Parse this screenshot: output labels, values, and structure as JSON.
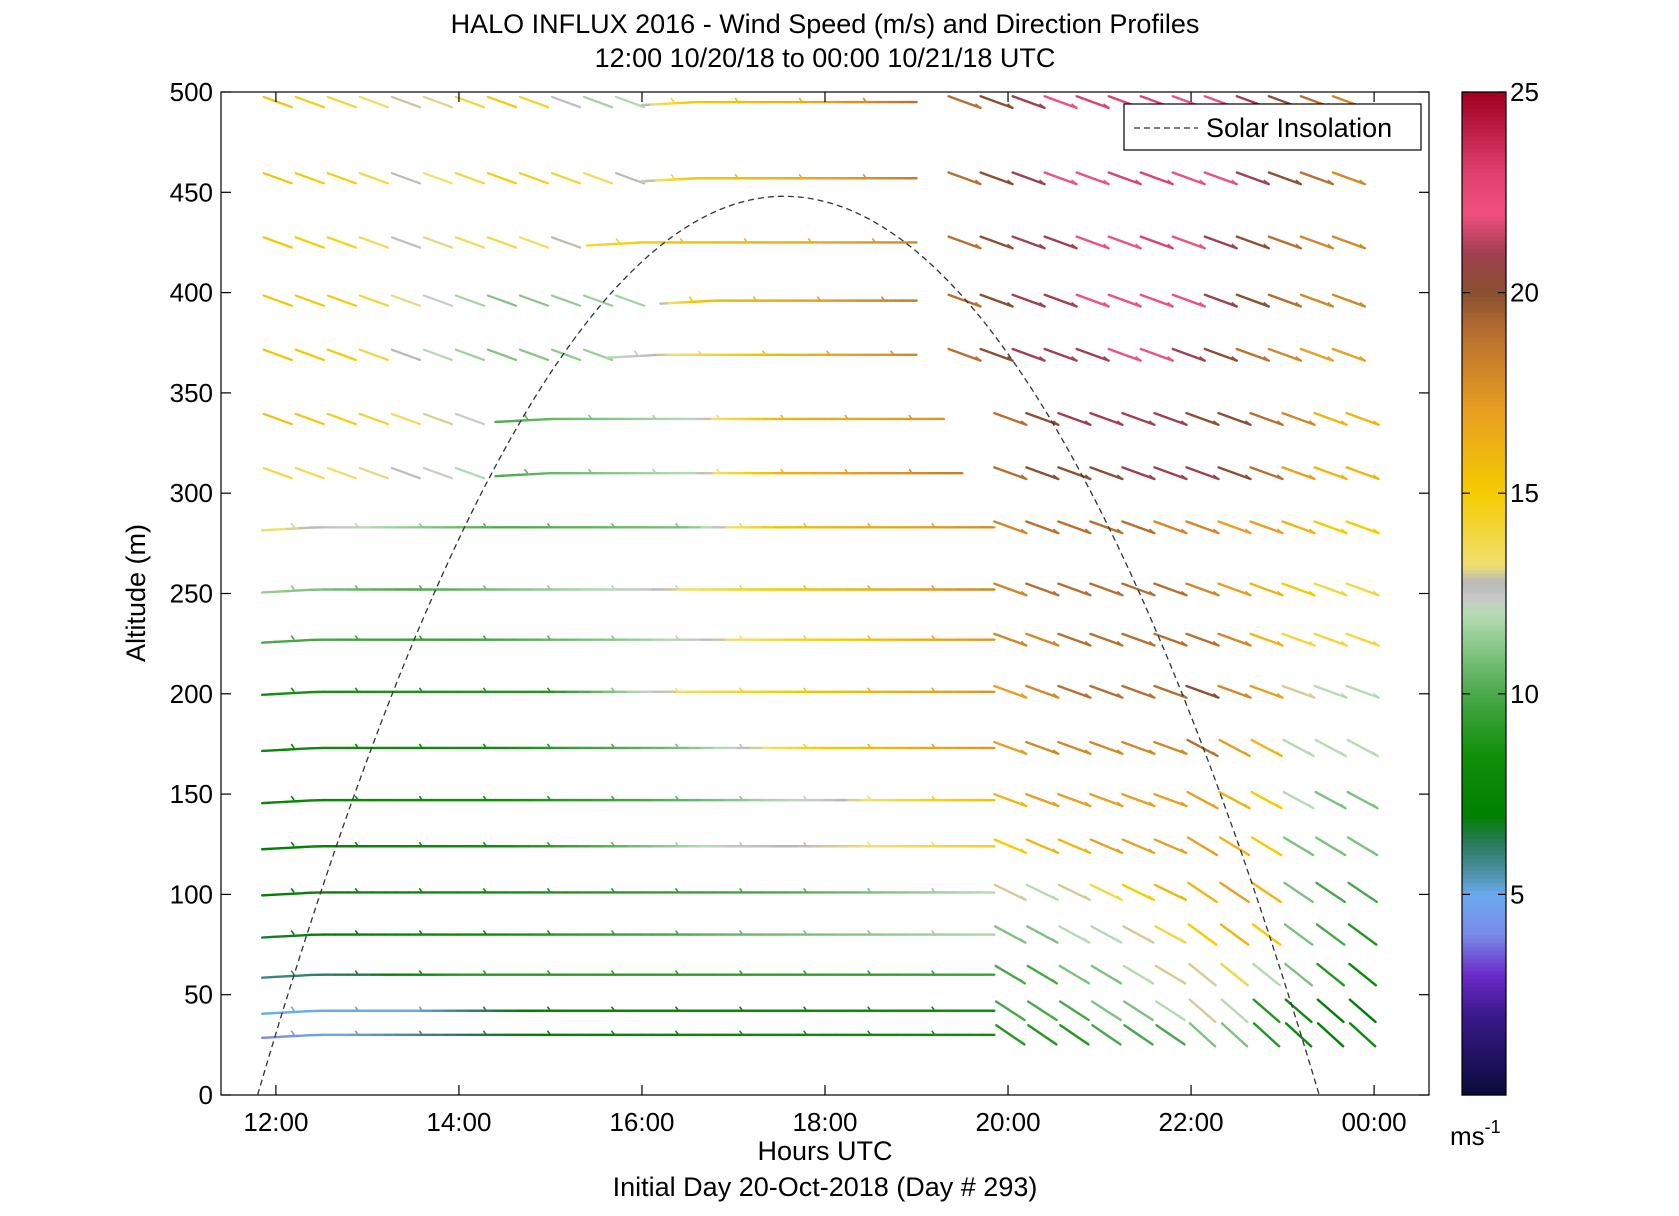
{
  "chart_data": {
    "type": "wind-barb-profile",
    "title": "HALO INFLUX 2016 - Wind Speed (m/s) and Direction Profiles",
    "subtitle": "12:00 10/20/18 to 00:00 10/21/18  UTC",
    "xlabel": "Hours UTC",
    "ylabel": "Altitude (m)",
    "footer": "Initial Day 20-Oct-2018 (Day # 293)",
    "xlim": [
      11.4,
      24.6
    ],
    "ylim": [
      0,
      500
    ],
    "xticks": [
      12,
      14,
      16,
      18,
      20,
      22,
      24
    ],
    "xtick_labels": [
      "12:00",
      "14:00",
      "16:00",
      "18:00",
      "20:00",
      "22:00",
      "00:00"
    ],
    "yticks": [
      0,
      50,
      100,
      150,
      200,
      250,
      300,
      350,
      400,
      450,
      500
    ],
    "ytick_labels": [
      "0",
      "50",
      "100",
      "150",
      "200",
      "250",
      "300",
      "350",
      "400",
      "450",
      "500"
    ],
    "colorbar": {
      "range": [
        0,
        25
      ],
      "ticks": [
        5,
        10,
        15,
        20,
        25
      ],
      "tick_labels": [
        "5",
        "10",
        "15",
        "20",
        "25"
      ],
      "unit_label": "ms",
      "unit_exponent": "-1",
      "stops": [
        {
          "v": 0,
          "c": "#0a0a3a"
        },
        {
          "v": 2,
          "c": "#3a1a8a"
        },
        {
          "v": 3,
          "c": "#6a2ac8"
        },
        {
          "v": 4,
          "c": "#7a8ae8"
        },
        {
          "v": 5,
          "c": "#6aaaf0"
        },
        {
          "v": 5.6,
          "c": "#4a90a0"
        },
        {
          "v": 6.3,
          "c": "#2a7a5a"
        },
        {
          "v": 7,
          "c": "#008000"
        },
        {
          "v": 8.5,
          "c": "#10900a"
        },
        {
          "v": 10,
          "c": "#4aa84a"
        },
        {
          "v": 12,
          "c": "#b4dcb4"
        },
        {
          "v": 12.4,
          "c": "#c8c8c8"
        },
        {
          "v": 12.8,
          "c": "#b8b8b8"
        },
        {
          "v": 13.2,
          "c": "#f0e070"
        },
        {
          "v": 15,
          "c": "#f5cc00"
        },
        {
          "v": 17,
          "c": "#e8a020"
        },
        {
          "v": 19,
          "c": "#b87030"
        },
        {
          "v": 20,
          "c": "#8a5030"
        },
        {
          "v": 21,
          "c": "#a04050"
        },
        {
          "v": 22,
          "c": "#f05080"
        },
        {
          "v": 23,
          "c": "#e04070"
        },
        {
          "v": 25,
          "c": "#a00020"
        }
      ]
    },
    "legend": {
      "position": "top-right",
      "entries": [
        "Solar Insolation"
      ]
    },
    "solar_insolation": {
      "start_hour": 11.8,
      "end_hour": 23.4,
      "peak_hour": 17.55,
      "peak_altitude": 448
    },
    "wind_rows": [
      {
        "alt": 30,
        "kind": "line",
        "x0": 11.85,
        "x1": 19.85,
        "segments": [
          [
            11.85,
            4.0
          ],
          [
            12.3,
            4.5
          ],
          [
            12.7,
            5.0
          ],
          [
            15.3,
            7.5
          ],
          [
            19.8,
            8.5
          ]
        ],
        "start_dir": 275
      },
      {
        "alt": 42,
        "kind": "line",
        "x0": 11.85,
        "x1": 19.85,
        "segments": [
          [
            11.85,
            5.0
          ],
          [
            13.5,
            5.0
          ],
          [
            15.0,
            7.5
          ],
          [
            19.8,
            8.5
          ]
        ],
        "start_dir": 278
      },
      {
        "alt": 60,
        "kind": "line",
        "x0": 11.85,
        "x1": 19.85,
        "segments": [
          [
            11.85,
            5.8
          ],
          [
            13.0,
            6.5
          ],
          [
            14.0,
            9.0
          ],
          [
            19.8,
            9.5
          ]
        ],
        "start_dir": 280
      },
      {
        "alt": 80,
        "kind": "line",
        "x0": 11.85,
        "x1": 19.85,
        "segments": [
          [
            11.85,
            6.5
          ],
          [
            14.0,
            8.0
          ],
          [
            17.0,
            10.5
          ],
          [
            19.8,
            11.8
          ]
        ],
        "start_dir": 282
      },
      {
        "alt": 101,
        "kind": "line",
        "x0": 11.85,
        "x1": 19.85,
        "segments": [
          [
            11.85,
            7.0
          ],
          [
            14.5,
            8.5
          ],
          [
            17.5,
            10.0
          ],
          [
            19.8,
            12.0
          ]
        ],
        "start_dir": 283
      },
      {
        "alt": 124,
        "kind": "line",
        "x0": 11.85,
        "x1": 19.85,
        "segments": [
          [
            11.85,
            7.0
          ],
          [
            14.5,
            8.5
          ],
          [
            17.0,
            12.5
          ],
          [
            18.5,
            13.2
          ],
          [
            19.8,
            14.5
          ]
        ],
        "start_dir": 284
      },
      {
        "alt": 147,
        "kind": "line",
        "x0": 11.85,
        "x1": 19.85,
        "segments": [
          [
            11.85,
            7.5
          ],
          [
            14.5,
            8.5
          ],
          [
            16.5,
            10.5
          ],
          [
            18.0,
            12.5
          ],
          [
            19.8,
            15.5
          ]
        ],
        "start_dir": 285
      },
      {
        "alt": 173,
        "kind": "line",
        "x0": 11.85,
        "x1": 19.85,
        "segments": [
          [
            11.85,
            7.8
          ],
          [
            14.5,
            8.5
          ],
          [
            16.5,
            11.0
          ],
          [
            18.0,
            15.0
          ],
          [
            19.8,
            17.5
          ]
        ],
        "start_dir": 285
      },
      {
        "alt": 201,
        "kind": "line",
        "x0": 11.85,
        "x1": 19.85,
        "segments": [
          [
            11.85,
            8.5
          ],
          [
            15.0,
            9.0
          ],
          [
            16.5,
            13.5
          ],
          [
            18.0,
            15.5
          ],
          [
            19.8,
            17.5
          ]
        ],
        "start_dir": 285
      },
      {
        "alt": 227,
        "kind": "line",
        "x0": 11.85,
        "x1": 19.85,
        "segments": [
          [
            11.85,
            10.0
          ],
          [
            14.0,
            9.5
          ],
          [
            16.0,
            11.5
          ],
          [
            17.5,
            14.0
          ],
          [
            19.8,
            17.5
          ]
        ],
        "start_dir": 286
      },
      {
        "alt": 252,
        "kind": "line",
        "x0": 11.85,
        "x1": 19.85,
        "segments": [
          [
            11.85,
            11.5
          ],
          [
            13.5,
            10.0
          ],
          [
            16.0,
            12.4
          ],
          [
            17.5,
            15.0
          ],
          [
            19.8,
            18.0
          ]
        ],
        "start_dir": 286
      },
      {
        "alt": 283,
        "kind": "line",
        "x0": 11.85,
        "x1": 19.85,
        "segments": [
          [
            11.85,
            13.5
          ],
          [
            13.0,
            12.0
          ],
          [
            14.5,
            10.0
          ],
          [
            16.5,
            11.0
          ],
          [
            17.5,
            15.5
          ],
          [
            19.8,
            17.8
          ]
        ],
        "start_dir": 286
      },
      {
        "alt": 310,
        "kind": "barbs",
        "x0": 11.85,
        "x1": 14.4,
        "segments": [
          [
            11.85,
            14.2
          ],
          [
            13.0,
            13.2
          ],
          [
            14.4,
            11.5
          ]
        ],
        "start_dir": 292
      },
      {
        "alt": 310,
        "kind": "line",
        "x0": 14.4,
        "x1": 19.5,
        "segments": [
          [
            14.4,
            10.0
          ],
          [
            16.5,
            12.0
          ],
          [
            17.5,
            16.0
          ],
          [
            19.5,
            18.5
          ]
        ],
        "start_dir": 286
      },
      {
        "alt": 337,
        "kind": "barbs",
        "x0": 11.85,
        "x1": 14.4,
        "segments": [
          [
            11.85,
            15.8
          ],
          [
            13.0,
            14.5
          ],
          [
            14.4,
            11.8
          ]
        ],
        "start_dir": 292
      },
      {
        "alt": 337,
        "kind": "line",
        "x0": 14.4,
        "x1": 19.3,
        "segments": [
          [
            14.4,
            10.0
          ],
          [
            16.5,
            12.0
          ],
          [
            17.5,
            16.0
          ],
          [
            19.3,
            17.5
          ]
        ],
        "start_dir": 286
      },
      {
        "alt": 369,
        "kind": "barbs",
        "x0": 11.85,
        "x1": 15.6,
        "segments": [
          [
            11.85,
            15.5
          ],
          [
            12.8,
            15.0
          ],
          [
            13.5,
            12.5
          ],
          [
            14.5,
            11.0
          ],
          [
            15.6,
            11.5
          ]
        ],
        "start_dir": 293
      },
      {
        "alt": 369,
        "kind": "line",
        "x0": 15.6,
        "x1": 19.0,
        "segments": [
          [
            15.6,
            11.8
          ],
          [
            16.5,
            13.5
          ],
          [
            17.5,
            15.8
          ],
          [
            19.0,
            18.0
          ]
        ],
        "start_dir": 287
      },
      {
        "alt": 396,
        "kind": "barbs",
        "x0": 11.85,
        "x1": 16.2,
        "segments": [
          [
            11.85,
            15.5
          ],
          [
            12.8,
            15.0
          ],
          [
            13.6,
            12.6
          ],
          [
            14.5,
            11.0
          ],
          [
            16.2,
            11.8
          ]
        ],
        "start_dir": 293
      },
      {
        "alt": 396,
        "kind": "line",
        "x0": 16.2,
        "x1": 19.0,
        "segments": [
          [
            16.2,
            12.4
          ],
          [
            16.6,
            15.5
          ],
          [
            17.8,
            16.8
          ],
          [
            19.0,
            18.5
          ]
        ],
        "start_dir": 287
      },
      {
        "alt": 425,
        "kind": "barbs",
        "x0": 11.85,
        "x1": 15.4,
        "segments": [
          [
            11.85,
            15.5
          ],
          [
            12.8,
            14.5
          ],
          [
            13.4,
            12.6
          ],
          [
            14.4,
            14.0
          ],
          [
            15.4,
            12.5
          ]
        ],
        "start_dir": 294
      },
      {
        "alt": 425,
        "kind": "line",
        "x0": 15.4,
        "x1": 19.0,
        "segments": [
          [
            15.4,
            14.0
          ],
          [
            16.5,
            15.5
          ],
          [
            17.8,
            16.5
          ],
          [
            19.0,
            18.0
          ]
        ],
        "start_dir": 288
      },
      {
        "alt": 457,
        "kind": "barbs",
        "x0": 11.85,
        "x1": 16.0,
        "segments": [
          [
            11.85,
            15.5
          ],
          [
            12.8,
            14.8
          ],
          [
            13.5,
            12.6
          ],
          [
            14.5,
            15.0
          ],
          [
            15.4,
            14.0
          ],
          [
            16.0,
            12.5
          ]
        ],
        "start_dir": 294
      },
      {
        "alt": 457,
        "kind": "line",
        "x0": 16.0,
        "x1": 19.0,
        "segments": [
          [
            16.0,
            12.2
          ],
          [
            16.5,
            15.0
          ],
          [
            17.8,
            16.5
          ],
          [
            19.0,
            18.5
          ]
        ],
        "start_dir": 288
      },
      {
        "alt": 495,
        "kind": "barbs",
        "x0": 11.85,
        "x1": 16.0,
        "segments": [
          [
            11.85,
            15.8
          ],
          [
            12.8,
            14.0
          ],
          [
            13.6,
            12.6
          ],
          [
            14.6,
            15.5
          ],
          [
            15.4,
            11.5
          ],
          [
            16.0,
            12.0
          ]
        ],
        "start_dir": 294
      },
      {
        "alt": 495,
        "kind": "line",
        "x0": 16.0,
        "x1": 19.0,
        "segments": [
          [
            16.0,
            12.5
          ],
          [
            16.5,
            15.0
          ],
          [
            17.8,
            16.5
          ],
          [
            19.0,
            19.0
          ]
        ],
        "start_dir": 288
      }
    ],
    "barb_fields": [
      {
        "x0": 19.85,
        "x1": 24.0,
        "alt_rows": [
          30,
          42,
          60,
          80,
          101,
          124,
          147,
          173,
          201,
          227,
          252,
          283,
          310,
          337
        ],
        "step": 0.35
      },
      {
        "x0": 19.35,
        "x1": 24.0,
        "alt_rows": [
          369,
          396,
          425,
          457,
          495
        ],
        "step": 0.35
      }
    ],
    "barb_speed_profile": {
      "30": [
        9,
        9,
        9,
        10,
        10,
        10,
        11,
        11,
        9,
        8,
        7,
        8,
        9
      ],
      "42": [
        10,
        10,
        10,
        11,
        11,
        12,
        13,
        12,
        9,
        8,
        7,
        7,
        8
      ],
      "60": [
        10,
        10,
        11,
        11,
        12,
        13,
        13,
        14,
        12,
        11,
        9,
        8,
        9
      ],
      "80": [
        11,
        11,
        12,
        12,
        13,
        14,
        15,
        16,
        15,
        11,
        10,
        9,
        9
      ],
      "101": [
        13,
        12,
        13,
        14,
        15,
        16,
        16,
        17,
        16,
        11,
        10,
        10,
        10
      ],
      "124": [
        15,
        16,
        16,
        17,
        17,
        17,
        17,
        16,
        15,
        11,
        11,
        11,
        12
      ],
      "147": [
        16,
        17,
        17,
        17,
        17,
        17,
        17,
        16,
        15,
        12,
        11,
        11,
        13
      ],
      "173": [
        17,
        18,
        18,
        18,
        18,
        18,
        19,
        17,
        16,
        12,
        12,
        12,
        14
      ],
      "201": [
        17,
        18,
        19,
        19,
        19,
        19,
        20,
        18,
        17,
        13,
        12,
        12,
        15
      ],
      "227": [
        18,
        18,
        19,
        19,
        19,
        19,
        19,
        18,
        16,
        14,
        14,
        14,
        15
      ],
      "252": [
        18,
        19,
        19,
        19,
        19,
        19,
        18,
        17,
        16,
        15,
        14,
        14,
        15
      ],
      "283": [
        18,
        19,
        19,
        19,
        19,
        18,
        18,
        17,
        17,
        16,
        15,
        15,
        16
      ],
      "310": [
        19,
        20,
        20,
        20,
        21,
        21,
        21,
        20,
        19,
        17,
        16,
        16,
        16
      ],
      "337": [
        19,
        20,
        21,
        21,
        21,
        21,
        20,
        20,
        19,
        18,
        16,
        16,
        16
      ],
      "369": [
        19,
        20,
        21,
        21,
        21,
        22,
        22,
        21,
        20,
        19,
        18,
        17,
        17
      ],
      "396": [
        19,
        20,
        21,
        21,
        22,
        22,
        22,
        22,
        21,
        20,
        19,
        18,
        18
      ],
      "425": [
        19,
        20,
        21,
        21,
        22,
        22,
        23,
        22,
        21,
        20,
        19,
        18,
        18
      ],
      "457": [
        19,
        20,
        21,
        22,
        22,
        23,
        23,
        22,
        22,
        21,
        20,
        19,
        18
      ],
      "495": [
        19,
        20,
        21,
        22,
        23,
        23,
        23,
        22,
        22,
        21,
        20,
        19,
        18
      ]
    }
  }
}
